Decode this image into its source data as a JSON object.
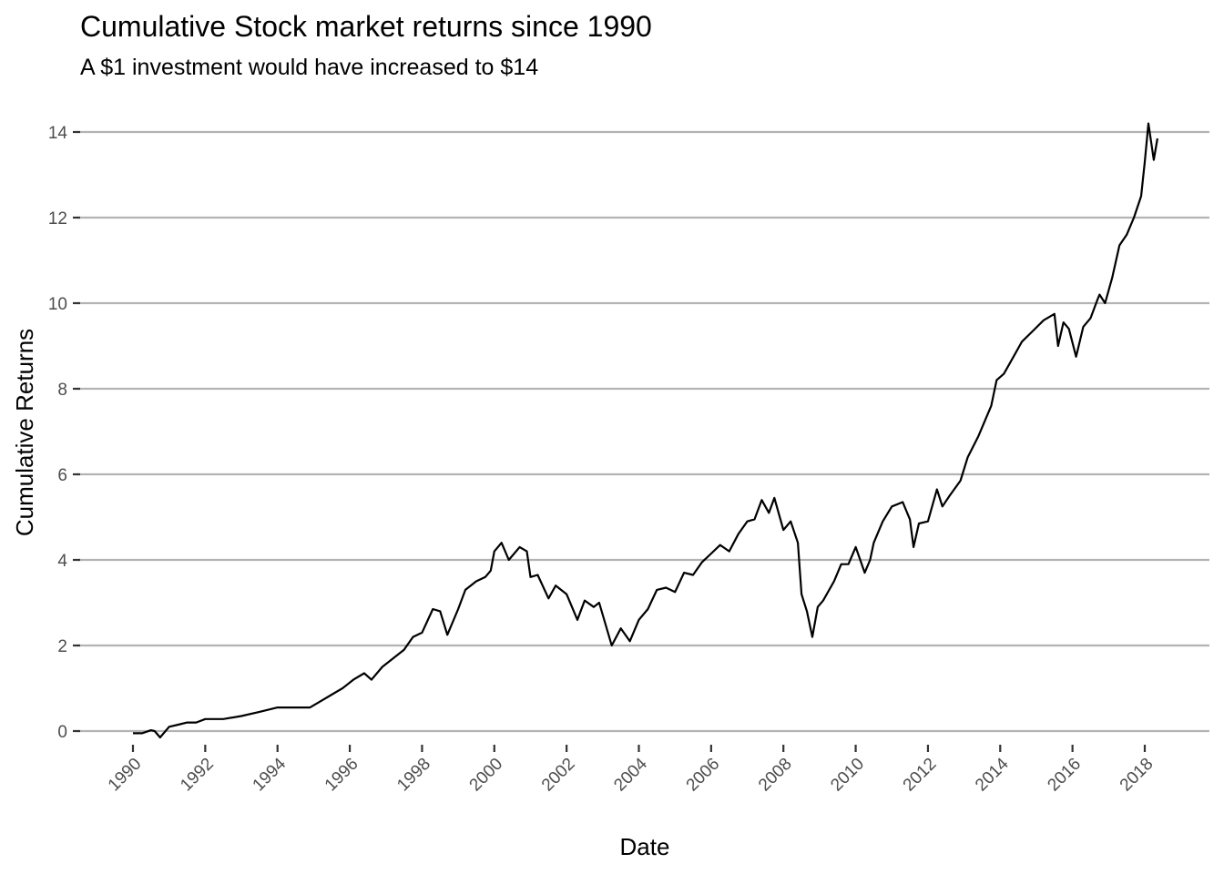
{
  "chart_data": {
    "type": "line",
    "title": "Cumulative Stock market returns since 1990",
    "subtitle": "A $1 investment would have increased to $14",
    "xlabel": "Date",
    "ylabel": "Cumulative Returns",
    "xlim": [
      1990,
      2018.4
    ],
    "ylim": [
      -0.3,
      14.4
    ],
    "x_ticks": [
      "1990",
      "1992",
      "1994",
      "1996",
      "1998",
      "2000",
      "2002",
      "2004",
      "2006",
      "2008",
      "2010",
      "2012",
      "2014",
      "2016",
      "2018"
    ],
    "y_ticks": [
      "0",
      "2",
      "4",
      "6",
      "8",
      "10",
      "12",
      "14"
    ],
    "grid": true,
    "legend": "none",
    "line_color": "#000000",
    "grid_color": "#b3b3b3",
    "series": [
      {
        "x": [
          1990.0,
          1990.25,
          1990.5,
          1990.6,
          1990.75,
          1991.0,
          1991.25,
          1991.5,
          1991.75,
          1992.0,
          1992.5,
          1993.0,
          1993.5,
          1994.0,
          1994.3,
          1994.6,
          1994.9,
          1995.2,
          1995.5,
          1995.8,
          1996.1,
          1996.4,
          1996.6,
          1996.9,
          1997.2,
          1997.5,
          1997.75,
          1998.0,
          1998.3,
          1998.5,
          1998.7,
          1999.0,
          1999.2,
          1999.5,
          1999.75,
          1999.9,
          2000.0,
          2000.2,
          2000.4,
          2000.7,
          2000.9,
          2001.0,
          2001.2,
          2001.5,
          2001.7,
          2002.0,
          2002.3,
          2002.5,
          2002.75,
          2002.9,
          2003.25,
          2003.5,
          2003.75,
          2004.0,
          2004.25,
          2004.5,
          2004.75,
          2005.0,
          2005.25,
          2005.5,
          2005.75,
          2006.0,
          2006.25,
          2006.5,
          2006.75,
          2007.0,
          2007.2,
          2007.4,
          2007.6,
          2007.75,
          2008.0,
          2008.2,
          2008.4,
          2008.5,
          2008.65,
          2008.8,
          2008.95,
          2009.1,
          2009.4,
          2009.6,
          2009.8,
          2010.0,
          2010.25,
          2010.4,
          2010.5,
          2010.75,
          2011.0,
          2011.3,
          2011.5,
          2011.6,
          2011.75,
          2012.0,
          2012.25,
          2012.4,
          2012.6,
          2012.9,
          2013.1,
          2013.4,
          2013.6,
          2013.75,
          2013.9,
          2014.1,
          2014.4,
          2014.6,
          2014.9,
          2015.2,
          2015.5,
          2015.6,
          2015.75,
          2015.9,
          2016.1,
          2016.3,
          2016.5,
          2016.7,
          2016.75,
          2016.9,
          2017.1,
          2017.3,
          2017.5,
          2017.7,
          2017.9,
          2018.0,
          2018.1,
          2018.25,
          2018.35
        ],
        "values": [
          -0.05,
          -0.05,
          0.02,
          0.0,
          -0.15,
          0.1,
          0.15,
          0.2,
          0.2,
          0.28,
          0.28,
          0.35,
          0.45,
          0.55,
          0.55,
          0.55,
          0.55,
          0.7,
          0.85,
          1.0,
          1.2,
          1.35,
          1.2,
          1.5,
          1.7,
          1.9,
          2.2,
          2.3,
          2.85,
          2.8,
          2.25,
          2.85,
          3.3,
          3.5,
          3.6,
          3.75,
          4.2,
          4.4,
          4.0,
          4.3,
          4.2,
          3.6,
          3.65,
          3.1,
          3.4,
          3.2,
          2.6,
          3.05,
          2.9,
          3.0,
          2.0,
          2.4,
          2.1,
          2.6,
          2.85,
          3.3,
          3.35,
          3.25,
          3.7,
          3.65,
          3.95,
          4.15,
          4.35,
          4.2,
          4.6,
          4.9,
          4.95,
          5.4,
          5.1,
          5.45,
          4.7,
          4.9,
          4.4,
          3.2,
          2.8,
          2.2,
          2.9,
          3.05,
          3.5,
          3.9,
          3.9,
          4.3,
          3.7,
          4.0,
          4.4,
          4.9,
          5.25,
          5.35,
          4.95,
          4.3,
          4.85,
          4.9,
          5.65,
          5.25,
          5.5,
          5.85,
          6.4,
          6.9,
          7.3,
          7.6,
          8.2,
          8.35,
          8.8,
          9.1,
          9.35,
          9.6,
          9.75,
          9.0,
          9.55,
          9.4,
          8.75,
          9.45,
          9.65,
          10.1,
          10.2,
          10.0,
          10.6,
          11.35,
          11.6,
          12.0,
          12.5,
          13.3,
          14.2,
          13.35,
          13.85
        ]
      }
    ]
  }
}
